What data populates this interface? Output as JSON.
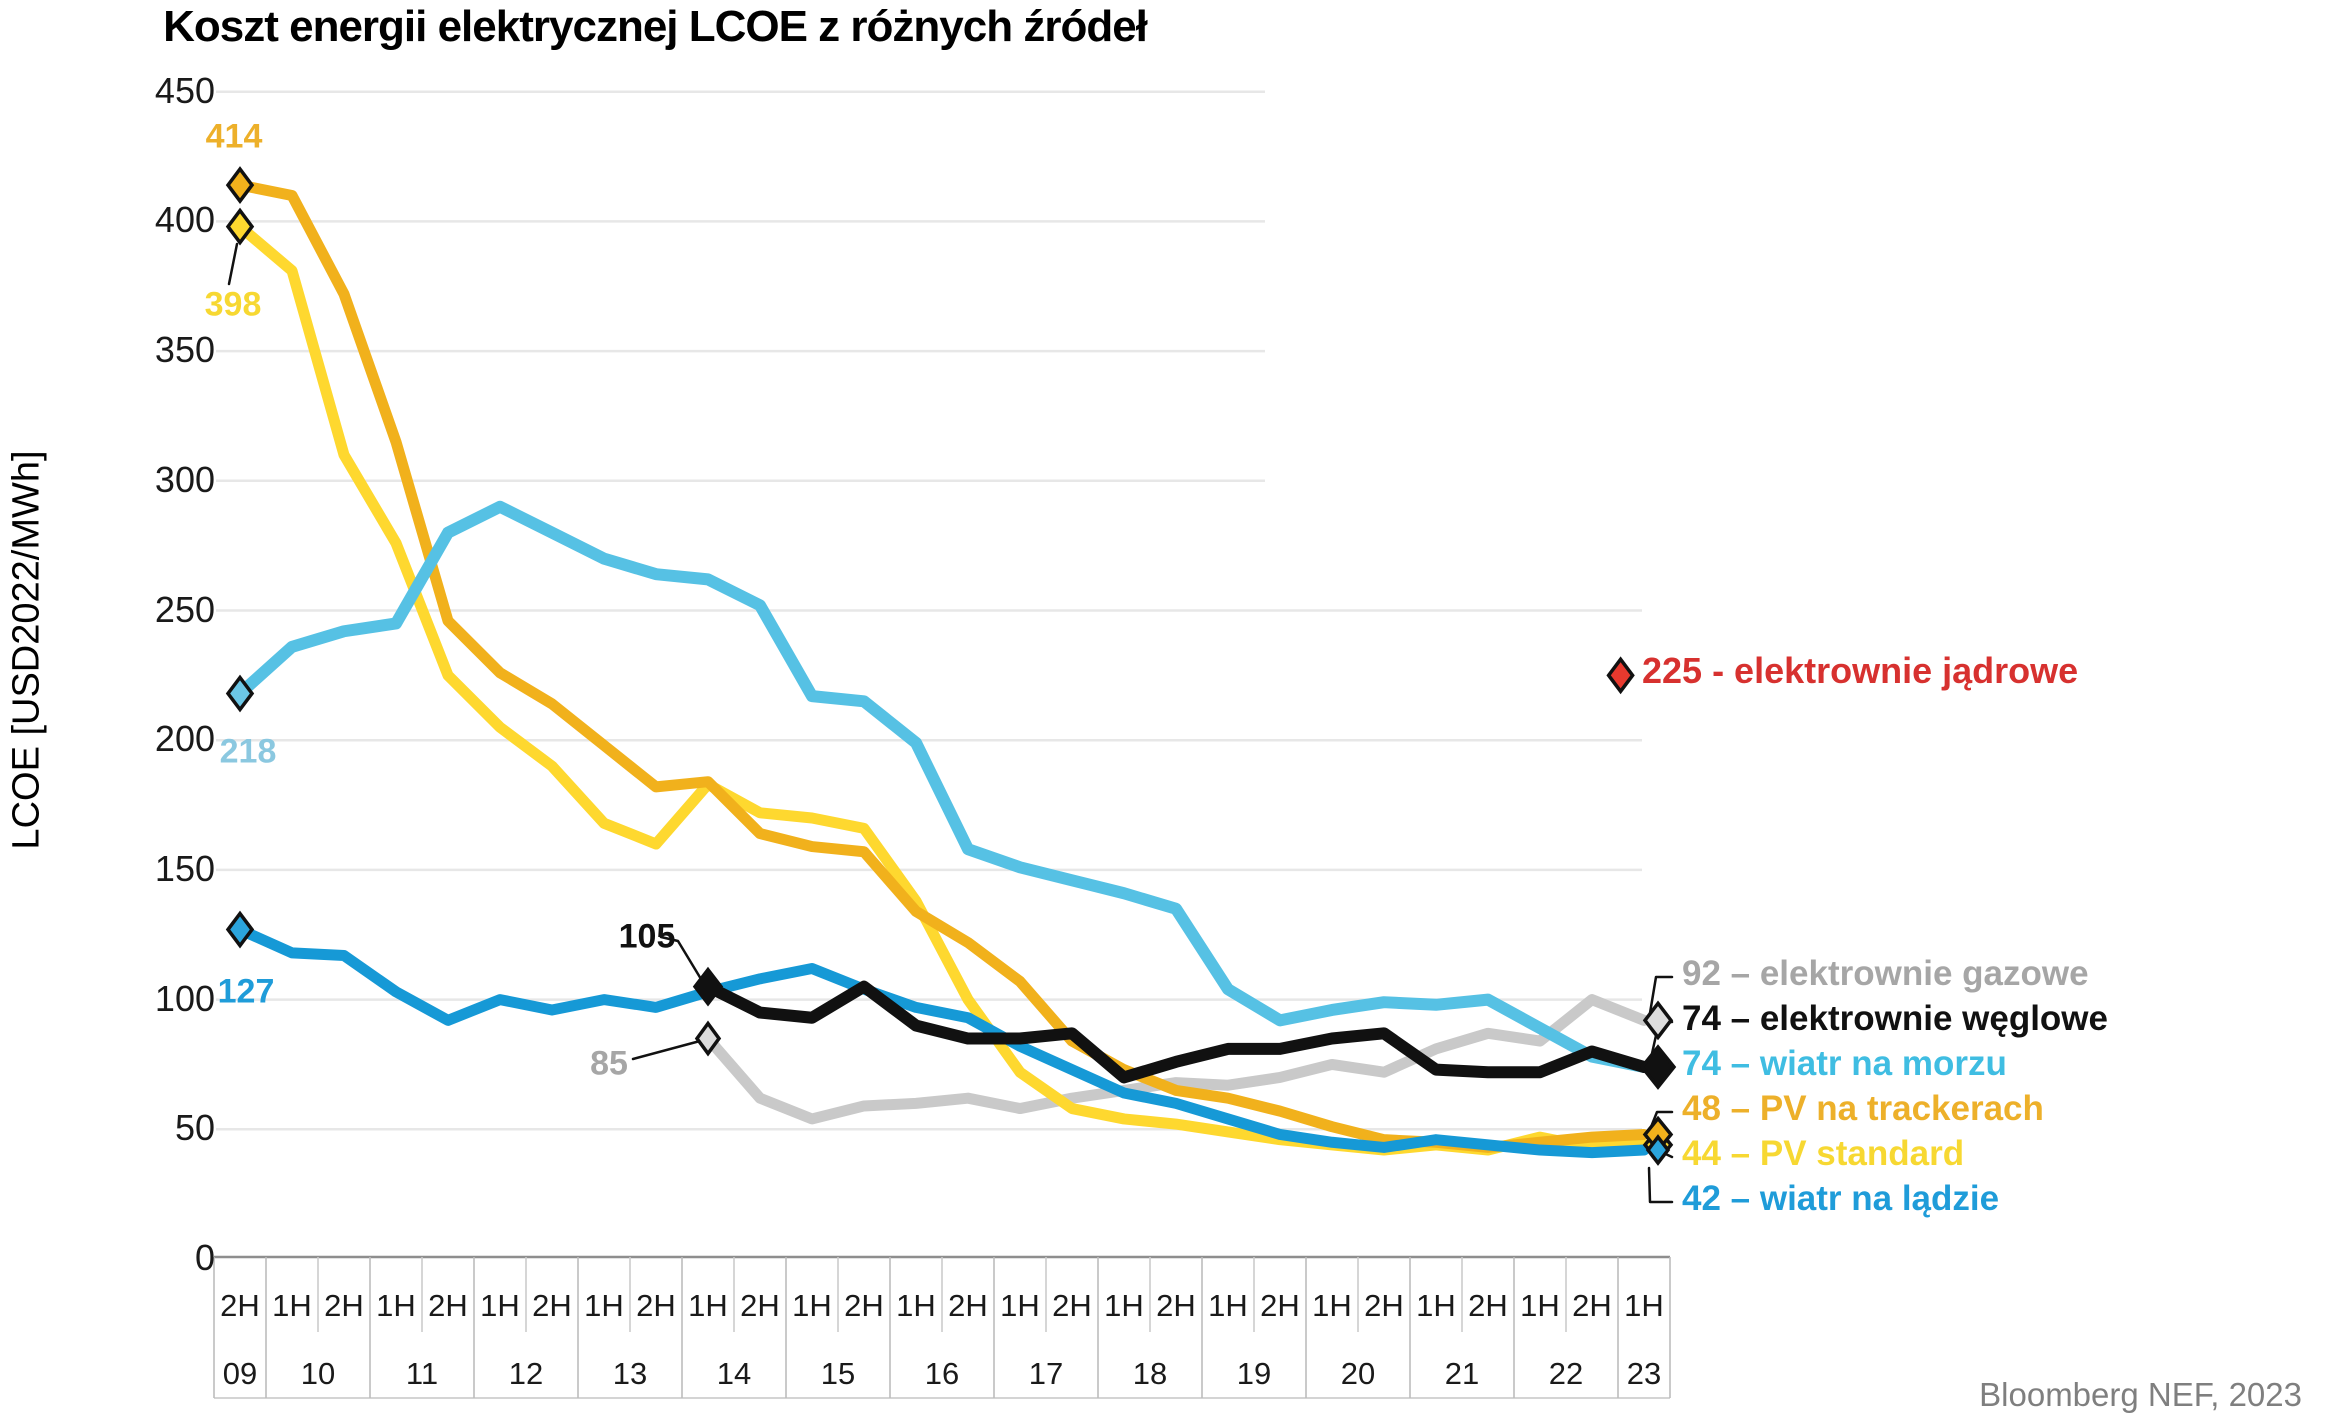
{
  "title": "Koszt energii elektrycznej LCOE z różnych źródeł",
  "source": "Bloomberg NEF, 2023",
  "y_axis": {
    "title": "LCOE [USD2022/MWh]",
    "ticks": [
      0,
      50,
      100,
      150,
      200,
      250,
      300,
      350,
      400,
      450
    ]
  },
  "x_axis": {
    "half_labels": [
      "2H",
      "1H",
      "2H",
      "1H",
      "2H",
      "1H",
      "2H",
      "1H",
      "2H",
      "1H",
      "2H",
      "1H",
      "2H",
      "1H",
      "2H",
      "1H",
      "2H",
      "1H",
      "2H",
      "1H",
      "2H",
      "1H",
      "2H",
      "1H",
      "2H",
      "1H",
      "2H",
      "1H"
    ],
    "years": [
      {
        "label": "09",
        "cols": 1
      },
      {
        "label": "10",
        "cols": 2
      },
      {
        "label": "11",
        "cols": 2
      },
      {
        "label": "12",
        "cols": 2
      },
      {
        "label": "13",
        "cols": 2
      },
      {
        "label": "14",
        "cols": 2
      },
      {
        "label": "15",
        "cols": 2
      },
      {
        "label": "16",
        "cols": 2
      },
      {
        "label": "17",
        "cols": 2
      },
      {
        "label": "18",
        "cols": 2
      },
      {
        "label": "19",
        "cols": 2
      },
      {
        "label": "20",
        "cols": 2
      },
      {
        "label": "21",
        "cols": 2
      },
      {
        "label": "22",
        "cols": 2
      },
      {
        "label": "23",
        "cols": 1
      }
    ]
  },
  "chart_data": {
    "type": "line",
    "title": "Koszt energii elektrycznej LCOE z różnych źródeł",
    "ylabel": "LCOE [USD2022/MWh]",
    "ylim": [
      0,
      450
    ],
    "grid": true,
    "categories": [
      "2H09",
      "1H10",
      "2H10",
      "1H11",
      "2H11",
      "1H12",
      "2H12",
      "1H13",
      "2H13",
      "1H14",
      "2H14",
      "1H15",
      "2H15",
      "1H16",
      "2H16",
      "1H17",
      "2H17",
      "1H18",
      "2H18",
      "1H19",
      "2H19",
      "1H20",
      "2H20",
      "1H21",
      "2H21",
      "1H22",
      "2H22",
      "1H23"
    ],
    "series": [
      {
        "id": "gazowe",
        "name": "elektrownie gazowe",
        "color": "#C9C9C9",
        "label_color": "#A6A6A6",
        "start_label": "85",
        "end_label": "92 – elektrownie gazowe",
        "end_value": 92,
        "values": [
          null,
          null,
          null,
          null,
          null,
          null,
          null,
          null,
          null,
          85,
          62,
          54,
          59,
          60,
          62,
          58,
          62,
          65,
          68,
          67,
          70,
          75,
          72,
          81,
          87,
          84,
          100,
          92
        ]
      },
      {
        "id": "pv_standard",
        "name": "PV standard",
        "color": "#FED82F",
        "label_color": "#F7D832",
        "start_label": "398",
        "end_label": "44 – PV standard",
        "end_value": 44,
        "values": [
          398,
          381,
          310,
          276,
          225,
          205,
          190,
          168,
          160,
          183,
          172,
          170,
          166,
          138,
          100,
          72,
          58,
          54,
          52,
          49,
          46,
          44,
          42,
          44,
          42,
          47,
          43,
          44
        ]
      },
      {
        "id": "pv_trackerach",
        "name": "PV na trackerach",
        "color": "#F1B11C",
        "label_color": "#EDB02A",
        "start_label": "414",
        "end_label": "48 – PV na trackerach",
        "end_value": 48,
        "values": [
          414,
          410,
          372,
          315,
          246,
          226,
          214,
          198,
          182,
          184,
          164,
          159,
          157,
          134,
          122,
          107,
          84,
          73,
          65,
          62,
          57,
          51,
          46,
          45,
          43,
          45,
          47,
          48
        ]
      },
      {
        "id": "wiatr_morze",
        "name": "wiatr na morzu",
        "color": "#56C1E4",
        "label_color": "#8BC8E0",
        "start_label": "218",
        "end_label": "74 – wiatr na morzu",
        "end_value": 74,
        "values": [
          218,
          236,
          242,
          245,
          280,
          290,
          280,
          270,
          264,
          262,
          252,
          217,
          215,
          199,
          158,
          151,
          146,
          141,
          135,
          104,
          92,
          96,
          99,
          98,
          100,
          89,
          78,
          74
        ]
      },
      {
        "id": "wiatr_lad",
        "name": "wiatr na lądzie",
        "color": "#1699D6",
        "label_color": "#1F9CD9",
        "start_label": "127",
        "end_label": "42 – wiatr na lądzie",
        "end_value": 42,
        "values": [
          127,
          118,
          117,
          103,
          92,
          100,
          96,
          100,
          97,
          103,
          108,
          112,
          104,
          97,
          93,
          82,
          73,
          64,
          60,
          54,
          48,
          45,
          43,
          46,
          44,
          42,
          41,
          42
        ]
      },
      {
        "id": "weglowe",
        "name": "elektrownie węglowe",
        "color": "#111111",
        "label_color": "#111111",
        "start_label": "105",
        "end_label": "74 – elektrownie węglowe",
        "end_value": 74,
        "values": [
          null,
          null,
          null,
          null,
          null,
          null,
          null,
          null,
          null,
          105,
          95,
          93,
          105,
          90,
          85,
          85,
          87,
          70,
          76,
          81,
          81,
          85,
          87,
          73,
          72,
          72,
          80,
          74
        ]
      }
    ],
    "nuclear": {
      "label": "225 - elektrownie jądrowe",
      "value": 225,
      "color": "#D7312F",
      "marker_fill": "#E8392E"
    }
  }
}
